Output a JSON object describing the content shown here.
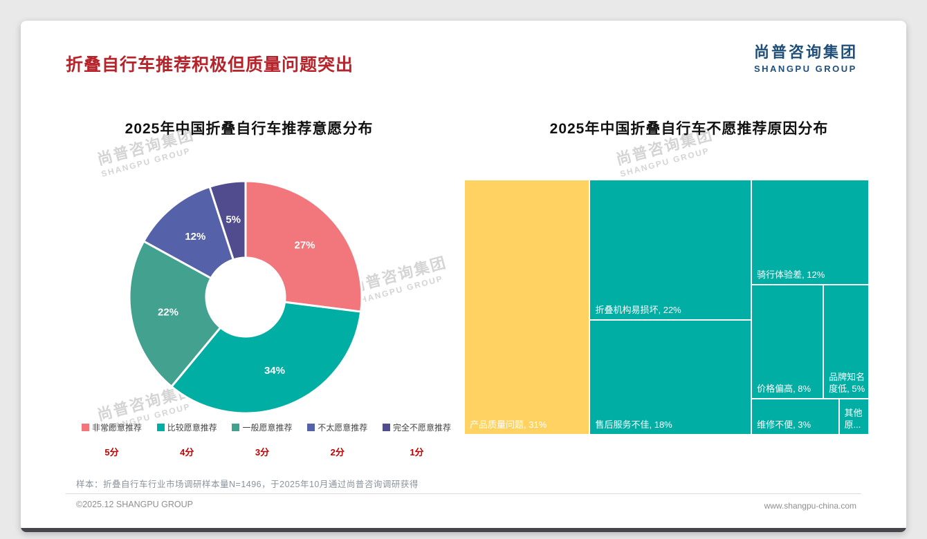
{
  "page": {
    "title": "折叠自行车推荐积极但质量问题突出",
    "logo": {
      "cn": "尚普咨询集团",
      "en": "SHANGPU GROUP"
    },
    "watermark": {
      "cn": "尚普咨询集团",
      "en": "SHANGPU GROUP"
    },
    "sample_note": "样本：折叠自行车行业市场调研样本量N=1496，于2025年10月通过尚普咨询调研获得",
    "footer": {
      "left": "©2025.12 SHANGPU GROUP",
      "right": "www.shangpu-china.com"
    }
  },
  "chart_data": [
    {
      "type": "pie",
      "title": "2025年中国折叠自行车推荐意愿分布",
      "donut": true,
      "start_angle": "top",
      "direction": "clockwise",
      "legend_position": "bottom",
      "slices": [
        {
          "label": "非常愿意推荐",
          "score": "5分",
          "value": 27,
          "pct_label": "27%",
          "color": "#F2777D"
        },
        {
          "label": "比较愿意推荐",
          "score": "4分",
          "value": 34,
          "pct_label": "34%",
          "color": "#00AEA4"
        },
        {
          "label": "一般愿意推荐",
          "score": "3分",
          "value": 22,
          "pct_label": "22%",
          "color": "#43A18F"
        },
        {
          "label": "不太愿意推荐",
          "score": "2分",
          "value": 12,
          "pct_label": "12%",
          "color": "#5561A8"
        },
        {
          "label": "完全不愿意推荐",
          "score": "1分",
          "value": 5,
          "pct_label": "5%",
          "color": "#514C8E"
        }
      ]
    },
    {
      "type": "treemap",
      "title": "2025年中国折叠自行车不愿推荐原因分布",
      "nodes": [
        {
          "name": "产品质量问题",
          "value": 31,
          "label": "产品质量问题, 31%",
          "color": "#FFD262"
        },
        {
          "name": "折叠机构易损坏",
          "value": 22,
          "label": "折叠机构易损坏, 22%",
          "color": "#00AEA4"
        },
        {
          "name": "售后服务不佳",
          "value": 18,
          "label": "售后服务不佳, 18%",
          "color": "#00AEA4"
        },
        {
          "name": "骑行体验差",
          "value": 12,
          "label": "骑行体验差, 12%",
          "color": "#00AEA4"
        },
        {
          "name": "价格偏高",
          "value": 8,
          "label": "价格偏高, 8%",
          "color": "#00AEA4"
        },
        {
          "name": "品牌知名度低",
          "value": 5,
          "label": "品牌知名度低, 5%",
          "color": "#00AEA4"
        },
        {
          "name": "维修不便",
          "value": 3,
          "label": "维修不便, 3%",
          "color": "#00AEA4"
        },
        {
          "name": "其他原因",
          "value": 1,
          "label": "其他原...",
          "color": "#00AEA4"
        }
      ]
    }
  ]
}
